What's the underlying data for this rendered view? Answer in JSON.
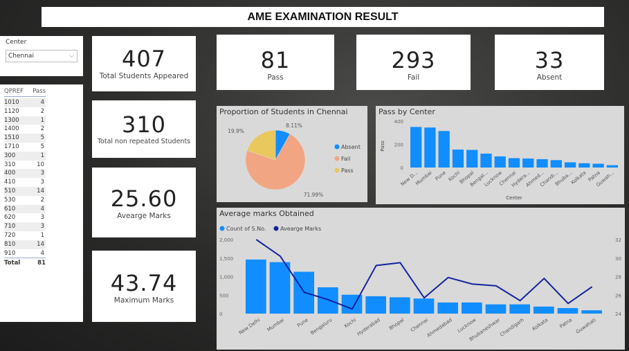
{
  "title": "AME EXAMINATION RESULT",
  "slicer": {
    "label": "Center",
    "value": "Chennai"
  },
  "table": {
    "headers": [
      "QPREF",
      "Pass"
    ],
    "rows": [
      [
        "1010",
        "4"
      ],
      [
        "1120",
        "2"
      ],
      [
        "1300",
        "1"
      ],
      [
        "1400",
        "2"
      ],
      [
        "1510",
        "5"
      ],
      [
        "1710",
        "5"
      ],
      [
        "300",
        "1"
      ],
      [
        "310",
        "10"
      ],
      [
        "400",
        "3"
      ],
      [
        "410",
        "3"
      ],
      [
        "510",
        "14"
      ],
      [
        "530",
        "2"
      ],
      [
        "610",
        "4"
      ],
      [
        "620",
        "3"
      ],
      [
        "710",
        "3"
      ],
      [
        "720",
        "1"
      ],
      [
        "810",
        "14"
      ],
      [
        "910",
        "4"
      ]
    ],
    "total_label": "Total",
    "total": "81"
  },
  "kpis": {
    "appeared": {
      "value": "407",
      "label": "Total Students Appeared"
    },
    "non_repeated": {
      "value": "310",
      "label": "Total non repeated Students"
    },
    "avg": {
      "value": "25.60",
      "label": "Avearge Marks"
    },
    "max": {
      "value": "43.74",
      "label": "Maximum Marks"
    },
    "pass": {
      "value": "81",
      "label": "Pass"
    },
    "fail": {
      "value": "293",
      "label": "Fail"
    },
    "absent": {
      "value": "33",
      "label": "Absent"
    }
  },
  "chart_data": [
    {
      "type": "pie",
      "title": "Proportion of Students in Chennai",
      "labels": [
        "Absent",
        "Fail",
        "Pass"
      ],
      "values": [
        8.11,
        71.99,
        19.9
      ],
      "value_labels": [
        "8.11%",
        "71.99%",
        "19.9%"
      ],
      "colors": [
        "#118DFF",
        "#F2A582",
        "#E9C85C"
      ],
      "legend": "right"
    },
    {
      "type": "bar",
      "title": "Pass by Center",
      "xlabel": "Center",
      "ylabel": "Pass",
      "ylim": [
        0,
        400
      ],
      "yticks": [
        "0",
        "200",
        "400"
      ],
      "categories": [
        "New D...",
        "Mumbai",
        "Pune",
        "Kochi",
        "Bhopal",
        "Bengal...",
        "Lucknow",
        "Chennai",
        "Hydera...",
        "Ahmed...",
        "Chandi...",
        "Bhuba...",
        "Kolkata",
        "Patna",
        "Guwah..."
      ],
      "values": [
        350,
        345,
        315,
        155,
        152,
        120,
        96,
        81,
        78,
        72,
        64,
        45,
        37,
        33,
        20
      ],
      "color": "#118DFF"
    },
    {
      "type": "bar+line",
      "title": "Average marks Obtained",
      "legend": "top-left",
      "categories": [
        "New Delhi",
        "Mumbai",
        "Pune",
        "Bengaluru",
        "Kochi",
        "Hyderabad",
        "Bhopal",
        "Chennai",
        "Ahmedabad",
        "Lucknow",
        "Bhubaneshwar",
        "Chandigarh",
        "Kolkata",
        "Patna",
        "Guwahati"
      ],
      "series": [
        {
          "name": "Count of S.No.",
          "type": "bar",
          "color": "#118DFF",
          "values": [
            1460,
            1390,
            1130,
            710,
            510,
            470,
            440,
            407,
            300,
            300,
            250,
            250,
            190,
            150,
            90
          ]
        },
        {
          "name": "Avearge Marks",
          "type": "line",
          "color": "#12239E",
          "values": [
            32,
            30.2,
            26.3,
            25.5,
            24.5,
            29.2,
            29.5,
            25.7,
            27.9,
            27.2,
            27.0,
            25.4,
            27.8,
            25.1,
            26.9
          ]
        }
      ],
      "ylim_left": [
        0,
        2000
      ],
      "yticks_left": [
        "0",
        "500",
        "1,000",
        "1,500",
        "2,000"
      ],
      "ylim_right": [
        24,
        32
      ],
      "yticks_right": [
        "24",
        "26",
        "28",
        "30",
        "32"
      ]
    }
  ]
}
